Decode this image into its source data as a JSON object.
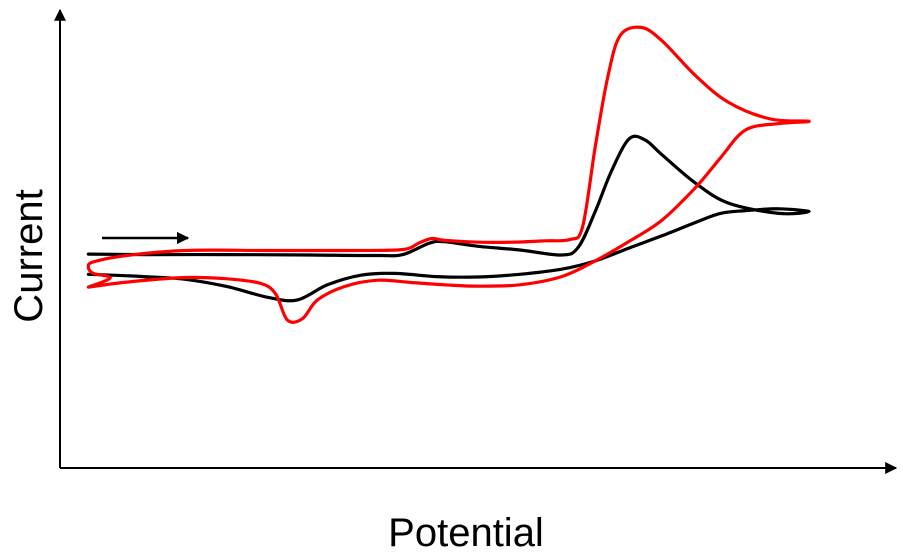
{
  "chart_data": {
    "type": "line",
    "title": "",
    "xlabel": "Potential",
    "ylabel": "Current",
    "xlim": [
      0,
      100
    ],
    "ylim": [
      0,
      100
    ],
    "grid": false,
    "axis_ticks": false,
    "annotation": "scan-direction arrow pointing right, upper left",
    "series": [
      {
        "name": "black-voltammogram",
        "color": "#000000",
        "points": [
          [
            3.4,
            46.7
          ],
          [
            10,
            46.6
          ],
          [
            20,
            46.6
          ],
          [
            30,
            46.5
          ],
          [
            38,
            46.4
          ],
          [
            41,
            46.6
          ],
          [
            44.2,
            49.1
          ],
          [
            46,
            49.4
          ],
          [
            50,
            48.4
          ],
          [
            55,
            47.6
          ],
          [
            60,
            46.5
          ],
          [
            62,
            48.2
          ],
          [
            64,
            55.9
          ],
          [
            66,
            65.0
          ],
          [
            68.1,
            71.9
          ],
          [
            70,
            71.6
          ],
          [
            72,
            68.4
          ],
          [
            76,
            62.2
          ],
          [
            80,
            57.8
          ],
          [
            86,
            55.6
          ],
          [
            89.6,
            56.0
          ],
          [
            86,
            56.6
          ],
          [
            82,
            56.2
          ],
          [
            79,
            55.6
          ],
          [
            76,
            53.6
          ],
          [
            72,
            50.7
          ],
          [
            68,
            48.0
          ],
          [
            64,
            45.2
          ],
          [
            60,
            43.4
          ],
          [
            55,
            42.3
          ],
          [
            50,
            41.7
          ],
          [
            45,
            41.8
          ],
          [
            40,
            42.5
          ],
          [
            36,
            42.1
          ],
          [
            32,
            40.0
          ],
          [
            28.4,
            36.7
          ],
          [
            25,
            37.2
          ],
          [
            20,
            39.6
          ],
          [
            15,
            41.2
          ],
          [
            10,
            41.8
          ],
          [
            3.4,
            42.3
          ]
        ]
      },
      {
        "name": "red-voltammogram",
        "color": "#ff0000",
        "points": [
          [
            3.4,
            39.5
          ],
          [
            8,
            40.6
          ],
          [
            15,
            41.6
          ],
          [
            20,
            41.3
          ],
          [
            24,
            40.3
          ],
          [
            25.8,
            38.0
          ],
          [
            27.2,
            32.3
          ],
          [
            29,
            32.6
          ],
          [
            30.8,
            36.7
          ],
          [
            34,
            39.6
          ],
          [
            38,
            41.0
          ],
          [
            42,
            40.5
          ],
          [
            46,
            40.0
          ],
          [
            50,
            39.7
          ],
          [
            55,
            40.0
          ],
          [
            60,
            41.8
          ],
          [
            64,
            45.2
          ],
          [
            68,
            49.4
          ],
          [
            72,
            54.1
          ],
          [
            76,
            61.2
          ],
          [
            79,
            67.7
          ],
          [
            82,
            73.8
          ],
          [
            86,
            75.2
          ],
          [
            89.6,
            75.7
          ],
          [
            85,
            76.2
          ],
          [
            80,
            79.8
          ],
          [
            76,
            85.7
          ],
          [
            72,
            93.3
          ],
          [
            69.5,
            96.2
          ],
          [
            67,
            94.4
          ],
          [
            65.5,
            85.2
          ],
          [
            64,
            69.8
          ],
          [
            62.5,
            52.6
          ],
          [
            61,
            49.9
          ],
          [
            58,
            49.6
          ],
          [
            54,
            49.3
          ],
          [
            50,
            49.3
          ],
          [
            46,
            49.7
          ],
          [
            44.5,
            50.1
          ],
          [
            43,
            49.2
          ],
          [
            41,
            47.7
          ],
          [
            35,
            47.5
          ],
          [
            25,
            47.5
          ],
          [
            15,
            47.5
          ],
          [
            8,
            46.4
          ],
          [
            4,
            45.0
          ],
          [
            3.4,
            43.8
          ],
          [
            4,
            42.5
          ],
          [
            6,
            41.5
          ],
          [
            3.4,
            39.5
          ]
        ]
      }
    ]
  }
}
